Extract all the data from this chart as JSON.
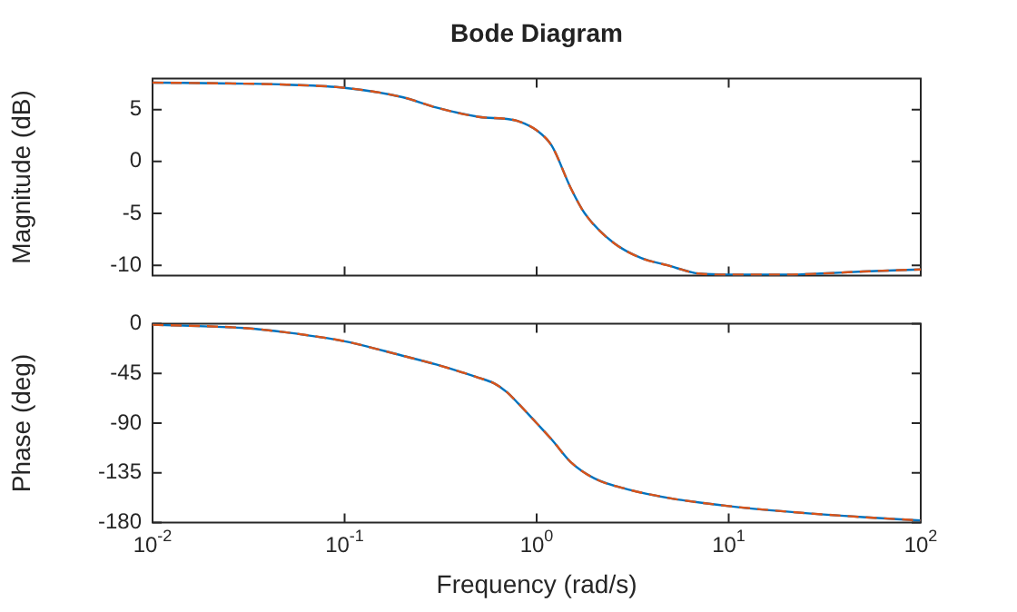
{
  "chart_data": [
    {
      "type": "line",
      "title": "Bode Diagram",
      "ylabel": "Magnitude (dB)",
      "log": "x",
      "grid": false,
      "legend": false,
      "marker": "none",
      "tick_labels": "y",
      "x": [
        0.01,
        0.03,
        0.05,
        0.1,
        0.2,
        0.3,
        0.5,
        0.7,
        0.8,
        1,
        1.2,
        1.5,
        1.78,
        2.5,
        3.5,
        4.8,
        7,
        10,
        14,
        20,
        30,
        50,
        100
      ],
      "xlim": [
        0.01,
        100
      ],
      "xticks": [
        {
          "value": 0.01,
          "label": null
        },
        {
          "value": 0.1,
          "label": null
        },
        {
          "value": 1,
          "label": null
        },
        {
          "value": 10,
          "label": null
        },
        {
          "value": 100,
          "label": null
        }
      ],
      "ylim": [
        -11,
        8
      ],
      "yticks": [
        -10,
        -5,
        0,
        5
      ],
      "series": [
        {
          "color": "#0072bd",
          "line_style": "solid",
          "values": [
            7.6,
            7.5,
            7.4,
            7.1,
            6.2,
            5.2,
            4.3,
            4.1,
            3.9,
            3.0,
            1.5,
            -2.5,
            -5,
            -7.8,
            -9.3,
            -10,
            -10.8,
            -10.9,
            -10.9,
            -10.9,
            -10.8,
            -10.6,
            -10.4
          ]
        },
        {
          "color": "#d95319",
          "line_style": "dashed",
          "values": [
            7.6,
            7.5,
            7.4,
            7.1,
            6.2,
            5.2,
            4.3,
            4.1,
            3.9,
            3.0,
            1.5,
            -2.5,
            -5,
            -7.8,
            -9.3,
            -10,
            -10.8,
            -10.9,
            -10.9,
            -10.9,
            -10.8,
            -10.6,
            -10.4
          ]
        }
      ]
    },
    {
      "type": "line",
      "xlabel": "Frequency (rad/s)",
      "ylabel": "Phase (deg)",
      "log": "x",
      "grid": false,
      "legend": false,
      "marker": "none",
      "x": [
        0.01,
        0.03,
        0.05,
        0.1,
        0.2,
        0.3,
        0.5,
        0.6,
        0.7,
        0.8,
        1,
        1.2,
        1.5,
        2,
        3,
        5,
        10,
        20,
        50,
        100
      ],
      "xlim": [
        0.01,
        100
      ],
      "xticks": [
        {
          "value": 0.01,
          "label": "10$^{-2}$"
        },
        {
          "value": 0.1,
          "label": "10$^{-1}$"
        },
        {
          "value": 1,
          "label": "10$^{0}$"
        },
        {
          "value": 10,
          "label": "10$^{1}$"
        },
        {
          "value": 100,
          "label": "10$^{2}$"
        }
      ],
      "ylim": [
        -180,
        0
      ],
      "yticks": [
        -180,
        -135,
        -90,
        -45,
        0
      ],
      "series": [
        {
          "color": "#0072bd",
          "line_style": "solid",
          "values": [
            -1,
            -4,
            -8,
            -16,
            -29,
            -37,
            -49,
            -54,
            -62,
            -72,
            -90,
            -105,
            -125,
            -140,
            -150,
            -158,
            -165,
            -170,
            -175,
            -178
          ]
        },
        {
          "color": "#d95319",
          "line_style": "dashed",
          "values": [
            -1,
            -4,
            -8,
            -16,
            -29,
            -37,
            -49,
            -54,
            -62,
            -72,
            -90,
            -105,
            -125,
            -140,
            -150,
            -158,
            -165,
            -170,
            -175,
            -178
          ]
        }
      ]
    }
  ]
}
